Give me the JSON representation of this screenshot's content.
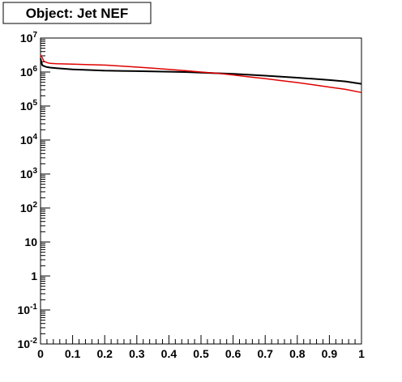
{
  "chart_data": {
    "type": "line",
    "title": "Object: Jet NEF",
    "xlabel": "",
    "ylabel": "",
    "xlim": [
      0,
      1
    ],
    "ylim": [
      0.01,
      10000000
    ],
    "y_scale": "log",
    "grid": false,
    "legend": "none",
    "x_ticks": [
      "0",
      "0.1",
      "0.2",
      "0.3",
      "0.4",
      "0.5",
      "0.6",
      "0.7",
      "0.8",
      "0.9",
      "1"
    ],
    "y_ticks": [
      {
        "value": 0.01,
        "base": "10",
        "exp": "-2"
      },
      {
        "value": 0.1,
        "base": "10",
        "exp": "-1"
      },
      {
        "value": 1,
        "base": "1",
        "exp": ""
      },
      {
        "value": 10,
        "base": "10",
        "exp": ""
      },
      {
        "value": 100,
        "base": "10",
        "exp": "2"
      },
      {
        "value": 1000,
        "base": "10",
        "exp": "3"
      },
      {
        "value": 10000,
        "base": "10",
        "exp": "4"
      },
      {
        "value": 100000,
        "base": "10",
        "exp": "5"
      },
      {
        "value": 1000000,
        "base": "10",
        "exp": "6"
      },
      {
        "value": 10000000,
        "base": "10",
        "exp": "7"
      }
    ],
    "series": [
      {
        "color": "#000000",
        "x": [
          0,
          0.005,
          0.01,
          0.02,
          0.03,
          0.05,
          0.1,
          0.15,
          0.2,
          0.25,
          0.3,
          0.35,
          0.4,
          0.45,
          0.5,
          0.55,
          0.6,
          0.65,
          0.7,
          0.75,
          0.8,
          0.85,
          0.9,
          0.95,
          1.0
        ],
        "y": [
          2500000,
          1600000,
          1500000,
          1400000,
          1350000,
          1300000,
          1200000,
          1150000,
          1100000,
          1080000,
          1060000,
          1040000,
          1020000,
          1000000,
          960000,
          920000,
          880000,
          830000,
          780000,
          730000,
          680000,
          630000,
          580000,
          530000,
          450000
        ]
      },
      {
        "color": "#e00000",
        "x": [
          0,
          0.005,
          0.01,
          0.02,
          0.03,
          0.05,
          0.1,
          0.15,
          0.2,
          0.25,
          0.3,
          0.35,
          0.4,
          0.45,
          0.5,
          0.55,
          0.6,
          0.65,
          0.7,
          0.75,
          0.8,
          0.85,
          0.9,
          0.95,
          1.0
        ],
        "y": [
          3200000,
          2700000,
          2100000,
          1900000,
          1800000,
          1750000,
          1700000,
          1650000,
          1600000,
          1500000,
          1400000,
          1300000,
          1200000,
          1100000,
          1000000,
          920000,
          820000,
          720000,
          640000,
          560000,
          490000,
          420000,
          360000,
          310000,
          250000
        ]
      }
    ]
  }
}
